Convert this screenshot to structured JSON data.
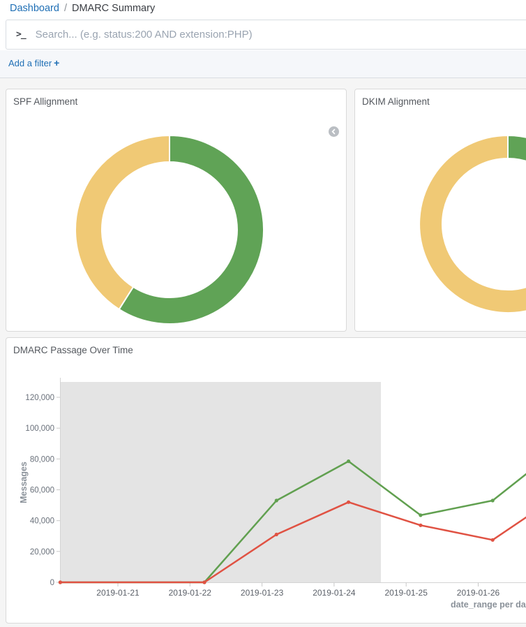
{
  "breadcrumb": {
    "parent": "Dashboard",
    "separator": "/",
    "current": "DMARC Summary"
  },
  "query_bar": {
    "prompt_icon": ">_",
    "placeholder": "Search... (e.g. status:200 AND extension:PHP)",
    "value": ""
  },
  "filter_bar": {
    "add_filter_label": "Add a filter",
    "plus": "+"
  },
  "colors": {
    "link_blue": "#1f6fb5",
    "pie_green": "#60a356",
    "pie_yellow": "#f0c975",
    "line_green": "#61a050",
    "line_red": "#e05243",
    "plot_shaded_band": "#e4e4e4",
    "panel_border": "#d9d9d9",
    "page_background": "#f5f5f5"
  },
  "chart_data": [
    {
      "type": "pie",
      "subtype": "donut",
      "title": "SPF Allignment",
      "legend_position": "none",
      "slices": [
        {
          "label": "green",
          "value": 59,
          "color": "#60a356"
        },
        {
          "label": "yellow",
          "value": 41,
          "color": "#f0c975"
        }
      ]
    },
    {
      "type": "pie",
      "subtype": "donut",
      "title": "DKIM Alignment",
      "legend_position": "none",
      "clipped_at_right_edge": true,
      "slices": [
        {
          "label": "green",
          "value": 6,
          "color": "#60a356"
        },
        {
          "label": "yellow",
          "value": 94,
          "color": "#f0c975"
        }
      ]
    },
    {
      "type": "line",
      "title": "DMARC Passage Over Time",
      "ylabel": "Messages",
      "xlabel": "date_range per da",
      "ylim": [
        0,
        130000
      ],
      "y_ticks": [
        0,
        20000,
        40000,
        60000,
        80000,
        100000,
        120000
      ],
      "x_tick_labels": [
        "2019-01-21",
        "2019-01-22",
        "2019-01-23",
        "2019-01-24",
        "2019-01-25",
        "2019-01-26"
      ],
      "x_day_zero": "2019-01-21",
      "grid": false,
      "shaded_region": {
        "from_day": -0.8,
        "to_day": 3.65,
        "color": "#e4e4e4"
      },
      "series": [
        {
          "name": "green-series",
          "color": "#61a050",
          "points": [
            [
              -0.8,
              0
            ],
            [
              1.2,
              0
            ],
            [
              2.2,
              53000
            ],
            [
              3.2,
              78500
            ],
            [
              4.2,
              43500
            ],
            [
              5.2,
              53000
            ],
            [
              6.2,
              90000
            ]
          ]
        },
        {
          "name": "red-series",
          "color": "#e05243",
          "points": [
            [
              -0.8,
              0
            ],
            [
              1.2,
              0
            ],
            [
              2.2,
              31000
            ],
            [
              3.2,
              52000
            ],
            [
              4.2,
              37000
            ],
            [
              5.2,
              27500
            ],
            [
              6.2,
              59000
            ]
          ]
        }
      ]
    }
  ]
}
